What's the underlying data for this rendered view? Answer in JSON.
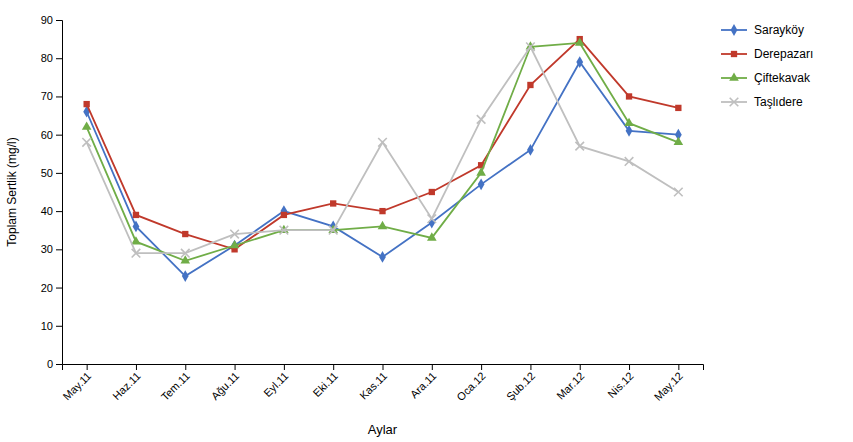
{
  "chart_data": {
    "type": "line",
    "xlabel": "Aylar",
    "ylabel": "Toplam Sertlik  (mg/l)",
    "categories": [
      "May.11",
      "Haz.11",
      "Tem.11",
      "Ağu.11",
      "Eyl.11",
      "Eki.11",
      "Kas.11",
      "Ara.11",
      "Oca.12",
      "Şub.12",
      "Mar.12",
      "Nis.12",
      "May.12"
    ],
    "series": [
      {
        "name": "Sarayköy",
        "color": "#4472c4",
        "marker": "diamond",
        "values": [
          66,
          36,
          23,
          31,
          40,
          36,
          28,
          37,
          47,
          56,
          79,
          61,
          60
        ]
      },
      {
        "name": "Derepazarı",
        "color": "#c0392b",
        "marker": "square",
        "values": [
          68,
          39,
          34,
          30,
          39,
          42,
          40,
          45,
          52,
          73,
          85,
          70,
          67
        ]
      },
      {
        "name": "Çiftekavak",
        "color": "#70ad47",
        "marker": "triangle",
        "values": [
          62,
          32,
          27,
          31,
          35,
          35,
          36,
          33,
          50,
          83,
          84,
          63,
          58
        ]
      },
      {
        "name": "Taşlıdere",
        "color": "#bfbfbf",
        "marker": "x",
        "values": [
          58,
          29,
          29,
          34,
          35,
          35,
          58,
          38,
          64,
          83,
          57,
          53,
          45
        ]
      }
    ],
    "ylim": [
      0,
      90
    ],
    "yticks": [
      0,
      10,
      20,
      30,
      40,
      50,
      60,
      70,
      80,
      90
    ],
    "grid": false,
    "legend": "upper right"
  }
}
